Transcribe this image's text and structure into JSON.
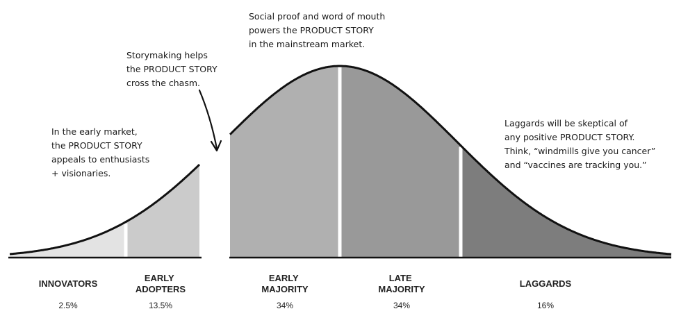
{
  "annotations": {
    "early_market": [
      "In the early market,",
      "the PRODUCT STORY",
      "appeals to enthusiasts",
      "+ visionaries."
    ],
    "chasm": [
      "Storymaking helps",
      "the PRODUCT STORY",
      "cross the chasm."
    ],
    "mainstream": [
      "Social proof and word of mouth",
      "powers the PRODUCT STORY",
      "in the mainstream market."
    ],
    "laggards": [
      "Laggards will be skeptical of",
      "any positive PRODUCT STORY.",
      "Think, “windmills give you cancer”",
      "and “vaccines are tracking you.”"
    ]
  },
  "segments": [
    {
      "name_lines": [
        "INNOVATORS"
      ],
      "share": "2.5%",
      "share_value": 2.5,
      "fill": "#e3e3e3"
    },
    {
      "name_lines": [
        "EARLY",
        "ADOPTERS"
      ],
      "share": "13.5%",
      "share_value": 13.5,
      "fill": "#cbcbcb"
    },
    {
      "name_lines": [
        "EARLY",
        "MAJORITY"
      ],
      "share": "34%",
      "share_value": 34,
      "fill": "#b0b0b0"
    },
    {
      "name_lines": [
        "LATE",
        "MAJORITY"
      ],
      "share": "34%",
      "share_value": 34,
      "fill": "#999999"
    },
    {
      "name_lines": [
        "LAGGARDS"
      ],
      "share": "16%",
      "share_value": 16,
      "fill": "#7d7d7d"
    }
  ],
  "colors": {
    "curve": "#111111",
    "divider": "#ffffff",
    "text": "#1a1a1a"
  }
}
